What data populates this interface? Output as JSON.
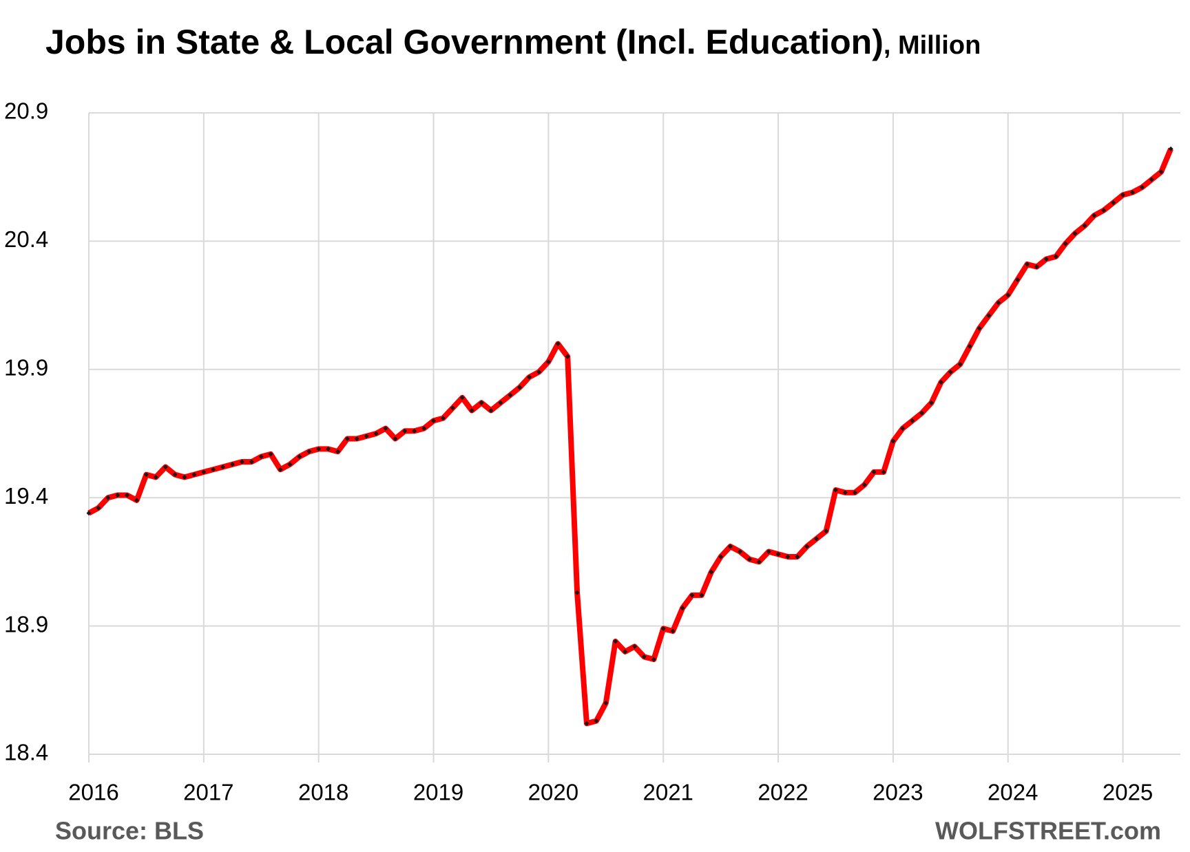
{
  "chart_data": {
    "type": "line",
    "title": "Jobs in State & Local Government (Incl. Education)",
    "title_unit": ", Million",
    "source": "Source: BLS",
    "brand": "WOLFSTREET.com",
    "x": [
      2016,
      2016.083,
      2016.167,
      2016.25,
      2016.333,
      2016.417,
      2016.5,
      2016.583,
      2016.667,
      2016.75,
      2016.833,
      2016.917,
      2017,
      2017.083,
      2017.167,
      2017.25,
      2017.333,
      2017.417,
      2017.5,
      2017.583,
      2017.667,
      2017.75,
      2017.833,
      2017.917,
      2018,
      2018.083,
      2018.167,
      2018.25,
      2018.333,
      2018.417,
      2018.5,
      2018.583,
      2018.667,
      2018.75,
      2018.833,
      2018.917,
      2019,
      2019.083,
      2019.167,
      2019.25,
      2019.333,
      2019.417,
      2019.5,
      2019.583,
      2019.667,
      2019.75,
      2019.833,
      2019.917,
      2020,
      2020.083,
      2020.167,
      2020.25,
      2020.333,
      2020.417,
      2020.5,
      2020.583,
      2020.667,
      2020.75,
      2020.833,
      2020.917,
      2021,
      2021.083,
      2021.167,
      2021.25,
      2021.333,
      2021.417,
      2021.5,
      2021.583,
      2021.667,
      2021.75,
      2021.833,
      2021.917,
      2022,
      2022.083,
      2022.167,
      2022.25,
      2022.333,
      2022.417,
      2022.5,
      2022.583,
      2022.667,
      2022.75,
      2022.833,
      2022.917,
      2023,
      2023.083,
      2023.167,
      2023.25,
      2023.333,
      2023.417,
      2023.5,
      2023.583,
      2023.667,
      2023.75,
      2023.833,
      2023.917,
      2024,
      2024.083,
      2024.167,
      2024.25,
      2024.333,
      2024.417,
      2024.5,
      2024.583,
      2024.667,
      2024.75,
      2024.833,
      2024.917,
      2025,
      2025.083,
      2025.167,
      2025.25,
      2025.333,
      2025.417
    ],
    "series": [
      {
        "name": "Jobs",
        "color": "#ff0000",
        "marker_color": "#1a1a1a",
        "values": [
          19.34,
          19.36,
          19.4,
          19.41,
          19.41,
          19.39,
          19.49,
          19.48,
          19.52,
          19.49,
          19.48,
          19.49,
          19.5,
          19.51,
          19.52,
          19.53,
          19.54,
          19.54,
          19.56,
          19.57,
          19.51,
          19.53,
          19.56,
          19.58,
          19.59,
          19.59,
          19.58,
          19.63,
          19.63,
          19.64,
          19.65,
          19.67,
          19.63,
          19.66,
          19.66,
          19.67,
          19.7,
          19.71,
          19.75,
          19.79,
          19.74,
          19.77,
          19.74,
          19.77,
          19.8,
          19.83,
          19.87,
          19.89,
          19.93,
          20.0,
          19.95,
          19.03,
          18.52,
          18.53,
          18.6,
          18.84,
          18.8,
          18.82,
          18.78,
          18.77,
          18.89,
          18.88,
          18.97,
          19.02,
          19.02,
          19.11,
          19.17,
          19.21,
          19.19,
          19.16,
          19.15,
          19.19,
          19.18,
          19.17,
          19.17,
          19.21,
          19.24,
          19.27,
          19.43,
          19.42,
          19.42,
          19.45,
          19.5,
          19.5,
          19.62,
          19.67,
          19.7,
          19.73,
          19.77,
          19.85,
          19.89,
          19.92,
          19.99,
          20.06,
          20.11,
          20.16,
          20.19,
          20.25,
          20.31,
          20.3,
          20.33,
          20.34,
          20.39,
          20.43,
          20.46,
          20.5,
          20.52,
          20.55,
          20.58,
          20.59,
          20.61,
          20.64,
          20.67,
          20.76
        ]
      }
    ],
    "xlim": [
      2016,
      2025.5
    ],
    "xticks": [
      2016,
      2017,
      2018,
      2019,
      2020,
      2021,
      2022,
      2023,
      2024,
      2025
    ],
    "ylim": [
      18.4,
      20.9
    ],
    "yticks": [
      18.4,
      18.9,
      19.4,
      19.9,
      20.4,
      20.9
    ],
    "grid": true
  }
}
